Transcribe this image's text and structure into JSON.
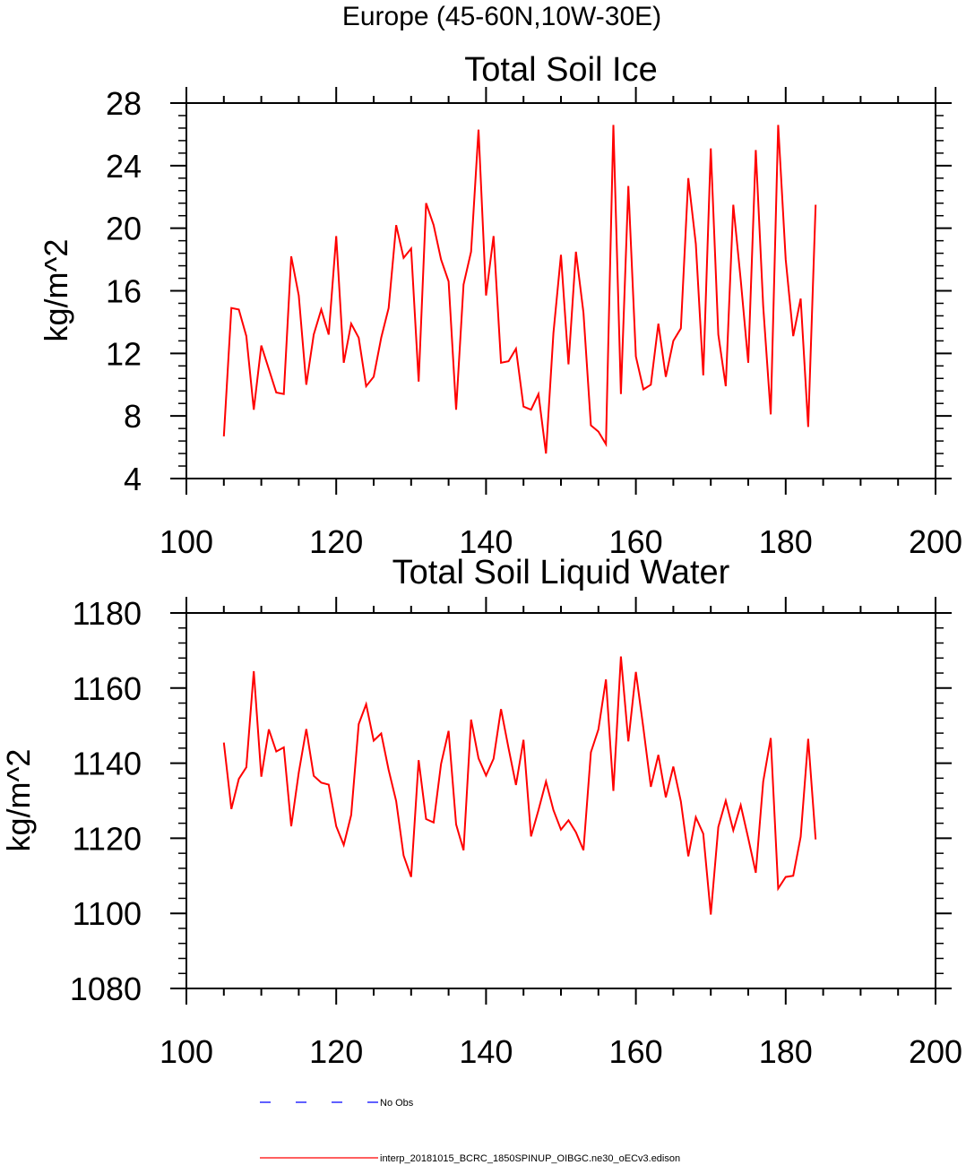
{
  "figure": {
    "suptitle": "Europe (45-60N,10W-30E)"
  },
  "legend": {
    "entries": [
      {
        "label": "No Obs",
        "color": "#0000ff",
        "style": "dashed"
      },
      {
        "label": "interp_20181015_BCRC_1850SPINUP_OIBGC.ne30_oECv3.edison",
        "color": "#ff0000",
        "style": "solid"
      }
    ]
  },
  "chart_data": [
    {
      "type": "line",
      "title": "Total Soil Ice",
      "xlabel": "",
      "ylabel": "kg/m^2",
      "xlim": [
        100,
        200
      ],
      "ylim": [
        4,
        28
      ],
      "xticks": [
        100,
        120,
        140,
        160,
        180,
        200
      ],
      "yticks": [
        4,
        8,
        12,
        16,
        20,
        24,
        28
      ],
      "x": [
        105,
        106,
        107,
        108,
        109,
        110,
        111,
        112,
        113,
        114,
        115,
        116,
        117,
        118,
        119,
        120,
        121,
        122,
        123,
        124,
        125,
        126,
        127,
        128,
        129,
        130,
        131,
        132,
        133,
        134,
        135,
        136,
        137,
        138,
        139,
        140,
        141,
        142,
        143,
        144,
        145,
        146,
        147,
        148,
        149,
        150,
        151,
        152,
        153,
        154,
        155,
        156,
        157,
        158,
        159,
        160,
        161,
        162,
        163,
        164,
        165,
        166,
        167,
        168,
        169,
        170,
        171,
        172,
        173,
        174,
        175,
        176,
        177,
        178,
        179,
        180,
        181,
        182,
        183,
        184
      ],
      "series": [
        {
          "name": "interp_20181015_BCRC_1850SPINUP_OIBGC.ne30_oECv3.edison",
          "color": "#ff0000",
          "values": [
            6.7,
            14.9,
            14.8,
            13.1,
            8.4,
            12.5,
            11.0,
            9.5,
            9.4,
            18.2,
            15.7,
            10.0,
            13.2,
            14.8,
            13.2,
            19.5,
            11.4,
            13.9,
            13.0,
            9.9,
            10.5,
            13.0,
            14.9,
            20.2,
            18.1,
            18.7,
            10.2,
            21.6,
            20.2,
            18.0,
            16.6,
            8.4,
            16.4,
            18.5,
            26.3,
            15.7,
            19.5,
            11.4,
            11.5,
            12.3,
            8.6,
            8.4,
            9.4,
            5.6,
            13.3,
            18.3,
            11.3,
            18.5,
            14.6,
            7.4,
            7.0,
            6.2,
            26.6,
            9.4,
            22.7,
            11.8,
            9.7,
            10.0,
            13.9,
            10.5,
            12.8,
            13.6,
            23.2,
            19.0,
            10.6,
            25.1,
            13.2,
            9.9,
            21.5,
            16.7,
            11.4,
            25.0,
            15.0,
            8.1,
            26.6,
            18.0,
            13.1,
            15.5,
            7.3,
            21.5
          ]
        }
      ]
    },
    {
      "type": "line",
      "title": "Total Soil Liquid Water",
      "xlabel": "",
      "ylabel": "kg/m^2",
      "xlim": [
        100,
        200
      ],
      "ylim": [
        1080,
        1180
      ],
      "xticks": [
        100,
        120,
        140,
        160,
        180,
        200
      ],
      "yticks": [
        1080,
        1100,
        1120,
        1140,
        1160,
        1180
      ],
      "x": [
        105,
        106,
        107,
        108,
        109,
        110,
        111,
        112,
        113,
        114,
        115,
        116,
        117,
        118,
        119,
        120,
        121,
        122,
        123,
        124,
        125,
        126,
        127,
        128,
        129,
        130,
        131,
        132,
        133,
        134,
        135,
        136,
        137,
        138,
        139,
        140,
        141,
        142,
        143,
        144,
        145,
        146,
        147,
        148,
        149,
        150,
        151,
        152,
        153,
        154,
        155,
        156,
        157,
        158,
        159,
        160,
        161,
        162,
        163,
        164,
        165,
        166,
        167,
        168,
        169,
        170,
        171,
        172,
        173,
        174,
        175,
        176,
        177,
        178,
        179,
        180,
        181,
        182,
        183,
        184
      ],
      "series": [
        {
          "name": "interp_20181015_BCRC_1850SPINUP_OIBGC.ne30_oECv3.edison",
          "color": "#ff0000",
          "values": [
            1145.5,
            1127.8,
            1135.8,
            1138.9,
            1164.5,
            1136.4,
            1149.0,
            1143.1,
            1144.2,
            1123.2,
            1137.5,
            1149.1,
            1136.6,
            1134.8,
            1134.3,
            1123.2,
            1118.2,
            1126.2,
            1150.4,
            1155.7,
            1146.0,
            1147.9,
            1138.2,
            1129.9,
            1115.4,
            1109.7,
            1140.8,
            1125.1,
            1124.2,
            1139.8,
            1148.6,
            1123.7,
            1116.8,
            1151.6,
            1141.3,
            1136.7,
            1141.2,
            1154.4,
            1144.0,
            1134.2,
            1146.2,
            1120.5,
            1127.5,
            1135.1,
            1127.5,
            1122.3,
            1124.8,
            1121.6,
            1116.8,
            1142.9,
            1149.0,
            1162.3,
            1132.6,
            1168.4,
            1145.8,
            1164.3,
            1149.3,
            1133.7,
            1142.2,
            1130.9,
            1139.1,
            1129.8,
            1115.2,
            1125.6,
            1121.2,
            1099.7,
            1123.0,
            1130.0,
            1122.1,
            1128.8,
            1120.0,
            1110.8,
            1135.1,
            1146.7,
            1106.6,
            1109.7,
            1110.0,
            1120.4,
            1146.5,
            1119.7
          ]
        }
      ]
    }
  ]
}
